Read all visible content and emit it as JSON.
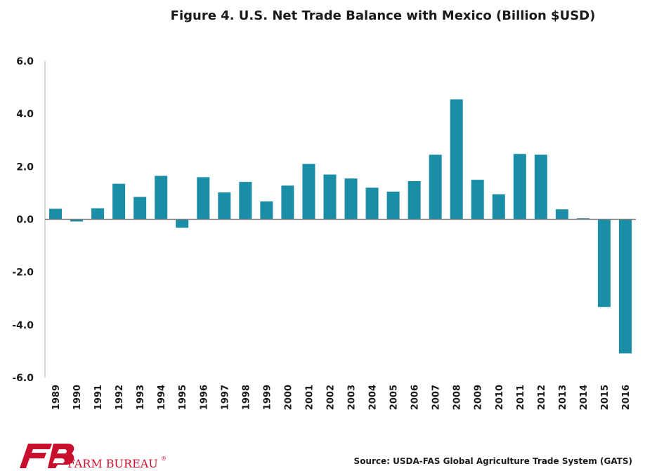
{
  "chart_data": {
    "type": "bar",
    "title": "Figure 4. U.S. Net Trade Balance with Mexico (Billion $USD)",
    "xlabel": "",
    "ylabel": "",
    "ylim": [
      -6.0,
      6.0
    ],
    "yticks": [
      "6.0",
      "4.0",
      "2.0",
      "0.0",
      "-2.0",
      "-4.0",
      "-6.0"
    ],
    "ytick_values": [
      6,
      4,
      2,
      0,
      -2,
      -4,
      -6
    ],
    "categories": [
      "1989",
      "1990",
      "1991",
      "1992",
      "1993",
      "1994",
      "1995",
      "1996",
      "1997",
      "1998",
      "1999",
      "2000",
      "2001",
      "2002",
      "2003",
      "2004",
      "2005",
      "2006",
      "2007",
      "2008",
      "2009",
      "2010",
      "2011",
      "2012",
      "2013",
      "2014",
      "2015",
      "2016"
    ],
    "values": [
      0.4,
      -0.08,
      0.42,
      1.35,
      0.85,
      1.65,
      -0.32,
      1.6,
      1.02,
      1.42,
      0.68,
      1.28,
      2.1,
      1.7,
      1.55,
      1.2,
      1.05,
      1.45,
      2.45,
      4.55,
      1.5,
      0.95,
      2.48,
      2.45,
      0.38,
      0.04,
      -3.32,
      -5.08
    ],
    "bar_color": "#1b8ea7",
    "grid": false
  },
  "footer": {
    "source": "Source: USDA-FAS Global Agriculture Trade System (GATS)",
    "brand": "FARM BUREAU",
    "brand_mark": "®",
    "brand_color": "#c8102e"
  }
}
